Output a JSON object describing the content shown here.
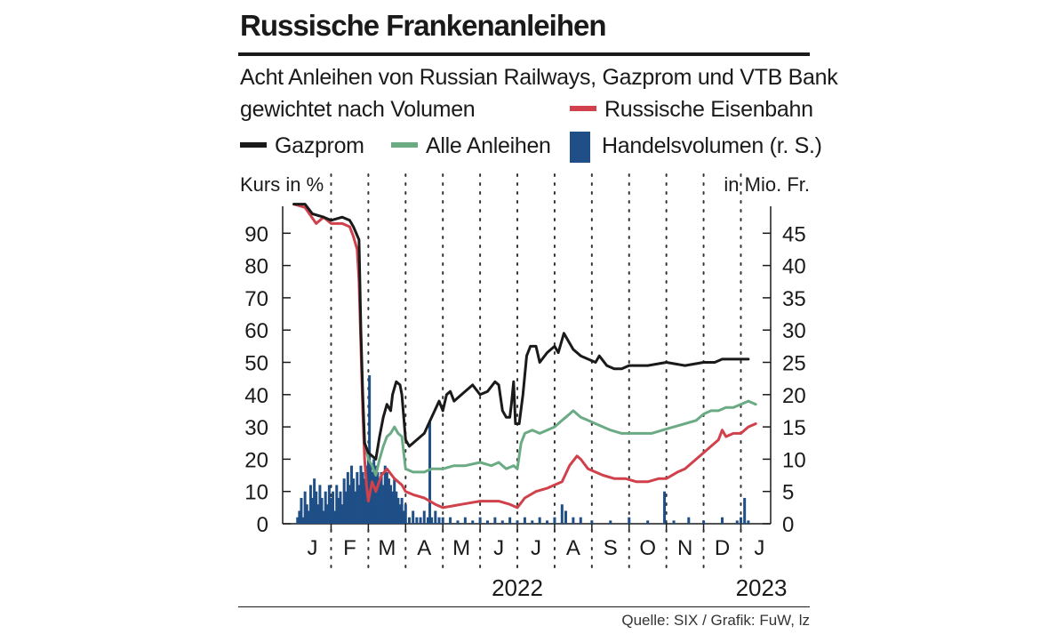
{
  "title": "Russische Frankenanleihen",
  "subtitle_line1": "Acht Anleihen von Russian Railways, Gazprom und VTB Bank",
  "subtitle_line2": "gewichtet nach Volumen",
  "legend": {
    "railways": "Russische Eisenbahn",
    "gazprom": "Gazprom",
    "all": "Alle Anleihen",
    "volume": "Handelsvolumen (r. S.)"
  },
  "colors": {
    "railways": "#d0414b",
    "gazprom": "#1a1a1a",
    "all": "#6aab84",
    "volume": "#1f4f86"
  },
  "left_axis_label": "Kurs in %",
  "right_axis_label": "in Mio. Fr.",
  "source": "Quelle: SIX / Grafik: FuW, lz",
  "chart_data": {
    "type": "line",
    "x_unit": "months since 1 Jan 2022",
    "xlim": [
      -0.3,
      12.8
    ],
    "ylim_left": [
      0,
      100
    ],
    "ylim_right": [
      0,
      50
    ],
    "left_ticks": [
      0,
      10,
      20,
      30,
      40,
      50,
      60,
      70,
      80,
      90
    ],
    "right_ticks": [
      0,
      5,
      10,
      15,
      20,
      25,
      30,
      35,
      40,
      45
    ],
    "month_labels": [
      {
        "label": "J",
        "t": 0.5
      },
      {
        "label": "F",
        "t": 1.5
      },
      {
        "label": "M",
        "t": 2.5
      },
      {
        "label": "A",
        "t": 3.5
      },
      {
        "label": "M",
        "t": 4.5
      },
      {
        "label": "J",
        "t": 5.5
      },
      {
        "label": "J",
        "t": 6.5
      },
      {
        "label": "A",
        "t": 7.5
      },
      {
        "label": "S",
        "t": 8.5
      },
      {
        "label": "O",
        "t": 9.5
      },
      {
        "label": "N",
        "t": 10.5
      },
      {
        "label": "D",
        "t": 11.5
      },
      {
        "label": "J",
        "t": 12.5
      }
    ],
    "month_dividers": [
      1,
      2,
      3,
      4,
      5,
      6,
      7,
      8,
      9,
      10,
      11,
      12
    ],
    "year_labels": [
      {
        "label": "2022",
        "t": 6
      },
      {
        "label": "2023",
        "t": 12.55
      }
    ],
    "series": [
      {
        "name": "Gazprom",
        "axis": "left",
        "points": [
          [
            0,
            99
          ],
          [
            0.3,
            99
          ],
          [
            0.5,
            96
          ],
          [
            0.8,
            95
          ],
          [
            1.0,
            94
          ],
          [
            1.3,
            95
          ],
          [
            1.5,
            94
          ],
          [
            1.6,
            92
          ],
          [
            1.75,
            88
          ],
          [
            1.8,
            60
          ],
          [
            1.85,
            40
          ],
          [
            1.9,
            25
          ],
          [
            2.0,
            22
          ],
          [
            2.1,
            21
          ],
          [
            2.2,
            20
          ],
          [
            2.3,
            27
          ],
          [
            2.4,
            33
          ],
          [
            2.5,
            37
          ],
          [
            2.6,
            35
          ],
          [
            2.65,
            40
          ],
          [
            2.75,
            44
          ],
          [
            2.85,
            43
          ],
          [
            2.9,
            40
          ],
          [
            3.0,
            26
          ],
          [
            3.1,
            24
          ],
          [
            3.3,
            26
          ],
          [
            3.5,
            28
          ],
          [
            3.7,
            33
          ],
          [
            3.9,
            38
          ],
          [
            4.0,
            35
          ],
          [
            4.1,
            40
          ],
          [
            4.2,
            41
          ],
          [
            4.3,
            38
          ],
          [
            4.5,
            40
          ],
          [
            4.8,
            43
          ],
          [
            5.0,
            40
          ],
          [
            5.2,
            41
          ],
          [
            5.4,
            44
          ],
          [
            5.5,
            43
          ],
          [
            5.6,
            35
          ],
          [
            5.7,
            33
          ],
          [
            5.8,
            33
          ],
          [
            5.85,
            38
          ],
          [
            5.9,
            44
          ],
          [
            5.95,
            31
          ],
          [
            6.05,
            31
          ],
          [
            6.15,
            40
          ],
          [
            6.25,
            52
          ],
          [
            6.35,
            55
          ],
          [
            6.5,
            55
          ],
          [
            6.6,
            50
          ],
          [
            6.8,
            53
          ],
          [
            7.0,
            55
          ],
          [
            7.1,
            53
          ],
          [
            7.25,
            59
          ],
          [
            7.35,
            57
          ],
          [
            7.5,
            54
          ],
          [
            7.7,
            52
          ],
          [
            7.9,
            51
          ],
          [
            8.1,
            50
          ],
          [
            8.2,
            52
          ],
          [
            8.4,
            49
          ],
          [
            8.6,
            48
          ],
          [
            8.8,
            48
          ],
          [
            9.0,
            49
          ],
          [
            9.5,
            49
          ],
          [
            10.0,
            50
          ],
          [
            10.5,
            49
          ],
          [
            11.0,
            50
          ],
          [
            11.3,
            50
          ],
          [
            11.5,
            51
          ],
          [
            11.8,
            51
          ],
          [
            12.0,
            51
          ],
          [
            12.2,
            51
          ]
        ]
      },
      {
        "name": "Russische Eisenbahn",
        "axis": "left",
        "points": [
          [
            0,
            99
          ],
          [
            0.3,
            98
          ],
          [
            0.6,
            93
          ],
          [
            0.8,
            95
          ],
          [
            1.0,
            93
          ],
          [
            1.3,
            93
          ],
          [
            1.5,
            92
          ],
          [
            1.6,
            89
          ],
          [
            1.7,
            85
          ],
          [
            1.75,
            75
          ],
          [
            1.8,
            55
          ],
          [
            1.85,
            35
          ],
          [
            1.9,
            20
          ],
          [
            1.95,
            12
          ],
          [
            2.0,
            7
          ],
          [
            2.1,
            13
          ],
          [
            2.2,
            10
          ],
          [
            2.35,
            15
          ],
          [
            2.5,
            17
          ],
          [
            2.7,
            14
          ],
          [
            2.9,
            12
          ],
          [
            3.0,
            10
          ],
          [
            3.2,
            9
          ],
          [
            3.5,
            8
          ],
          [
            3.8,
            6
          ],
          [
            4.0,
            5
          ],
          [
            4.5,
            6
          ],
          [
            5.0,
            7
          ],
          [
            5.5,
            7
          ],
          [
            5.8,
            6
          ],
          [
            6.0,
            5
          ],
          [
            6.2,
            8
          ],
          [
            6.5,
            10
          ],
          [
            6.8,
            11
          ],
          [
            7.0,
            12
          ],
          [
            7.2,
            13
          ],
          [
            7.4,
            18
          ],
          [
            7.6,
            21
          ],
          [
            7.7,
            20
          ],
          [
            7.9,
            17
          ],
          [
            8.1,
            16
          ],
          [
            8.3,
            15
          ],
          [
            8.6,
            14
          ],
          [
            8.9,
            14
          ],
          [
            9.2,
            13
          ],
          [
            9.5,
            13
          ],
          [
            9.8,
            14
          ],
          [
            10.0,
            14
          ],
          [
            10.3,
            16
          ],
          [
            10.5,
            17
          ],
          [
            10.8,
            20
          ],
          [
            11.0,
            22
          ],
          [
            11.2,
            24
          ],
          [
            11.4,
            26
          ],
          [
            11.5,
            29
          ],
          [
            11.6,
            27
          ],
          [
            11.8,
            28
          ],
          [
            12.0,
            28
          ],
          [
            12.2,
            30
          ],
          [
            12.4,
            31
          ]
        ]
      },
      {
        "name": "Alle Anleihen",
        "axis": "left",
        "points": [
          [
            1.85,
            35
          ],
          [
            1.9,
            25
          ],
          [
            2.0,
            20
          ],
          [
            2.1,
            18
          ],
          [
            2.2,
            15
          ],
          [
            2.3,
            20
          ],
          [
            2.4,
            24
          ],
          [
            2.5,
            27
          ],
          [
            2.6,
            28
          ],
          [
            2.7,
            30
          ],
          [
            2.8,
            28
          ],
          [
            2.9,
            27
          ],
          [
            3.0,
            17
          ],
          [
            3.2,
            16
          ],
          [
            3.5,
            16
          ],
          [
            3.7,
            17
          ],
          [
            4.0,
            17
          ],
          [
            4.3,
            18
          ],
          [
            4.6,
            18
          ],
          [
            5.0,
            19
          ],
          [
            5.3,
            18
          ],
          [
            5.5,
            19
          ],
          [
            5.7,
            17
          ],
          [
            5.9,
            18
          ],
          [
            6.0,
            17
          ],
          [
            6.1,
            25
          ],
          [
            6.2,
            28
          ],
          [
            6.4,
            29
          ],
          [
            6.6,
            28
          ],
          [
            6.8,
            29
          ],
          [
            7.0,
            30
          ],
          [
            7.2,
            32
          ],
          [
            7.4,
            34
          ],
          [
            7.5,
            35
          ],
          [
            7.7,
            33
          ],
          [
            7.9,
            32
          ],
          [
            8.1,
            31
          ],
          [
            8.3,
            30
          ],
          [
            8.5,
            29
          ],
          [
            8.8,
            28
          ],
          [
            9.0,
            28
          ],
          [
            9.3,
            28
          ],
          [
            9.6,
            28
          ],
          [
            9.9,
            29
          ],
          [
            10.2,
            30
          ],
          [
            10.5,
            31
          ],
          [
            10.8,
            32
          ],
          [
            11.0,
            34
          ],
          [
            11.2,
            35
          ],
          [
            11.4,
            35
          ],
          [
            11.6,
            36
          ],
          [
            11.8,
            36
          ],
          [
            12.0,
            37
          ],
          [
            12.2,
            38
          ],
          [
            12.4,
            37
          ]
        ]
      },
      {
        "name": "Handelsvolumen (r. S.)",
        "axis": "right",
        "type": "bar",
        "points": [
          [
            0.1,
            1
          ],
          [
            0.15,
            2
          ],
          [
            0.2,
            4
          ],
          [
            0.25,
            1
          ],
          [
            0.3,
            5
          ],
          [
            0.35,
            3
          ],
          [
            0.4,
            2
          ],
          [
            0.45,
            6
          ],
          [
            0.5,
            4
          ],
          [
            0.55,
            7
          ],
          [
            0.6,
            5
          ],
          [
            0.65,
            3
          ],
          [
            0.7,
            6
          ],
          [
            0.75,
            4
          ],
          [
            0.8,
            2
          ],
          [
            0.85,
            5
          ],
          [
            0.9,
            3
          ],
          [
            0.95,
            6
          ],
          [
            1.0,
            4
          ],
          [
            1.05,
            5
          ],
          [
            1.1,
            2
          ],
          [
            1.15,
            6
          ],
          [
            1.2,
            4
          ],
          [
            1.25,
            5
          ],
          [
            1.3,
            3
          ],
          [
            1.35,
            7
          ],
          [
            1.4,
            5
          ],
          [
            1.45,
            8
          ],
          [
            1.5,
            6
          ],
          [
            1.55,
            9
          ],
          [
            1.6,
            7
          ],
          [
            1.65,
            5
          ],
          [
            1.7,
            8
          ],
          [
            1.75,
            6
          ],
          [
            1.8,
            9
          ],
          [
            1.85,
            8
          ],
          [
            1.9,
            7
          ],
          [
            1.95,
            9
          ],
          [
            2.0,
            10
          ],
          [
            2.03,
            23
          ],
          [
            2.06,
            9
          ],
          [
            2.1,
            8
          ],
          [
            2.15,
            10
          ],
          [
            2.2,
            9
          ],
          [
            2.25,
            8
          ],
          [
            2.3,
            7
          ],
          [
            2.35,
            8
          ],
          [
            2.4,
            6
          ],
          [
            2.45,
            9
          ],
          [
            2.5,
            8
          ],
          [
            2.55,
            7
          ],
          [
            2.6,
            6
          ],
          [
            2.65,
            5
          ],
          [
            2.7,
            7
          ],
          [
            2.75,
            5
          ],
          [
            2.8,
            4
          ],
          [
            2.85,
            3
          ],
          [
            2.9,
            4
          ],
          [
            2.95,
            2
          ],
          [
            3.0,
            3
          ],
          [
            3.1,
            1
          ],
          [
            3.2,
            2
          ],
          [
            3.3,
            1
          ],
          [
            3.4,
            1
          ],
          [
            3.5,
            2
          ],
          [
            3.6,
            1
          ],
          [
            3.65,
            16
          ],
          [
            3.7,
            1
          ],
          [
            3.8,
            2
          ],
          [
            3.9,
            1
          ],
          [
            4.0,
            1
          ],
          [
            4.2,
            1
          ],
          [
            4.4,
            0.5
          ],
          [
            4.6,
            1
          ],
          [
            4.8,
            0.5
          ],
          [
            5.0,
            1
          ],
          [
            5.2,
            0.5
          ],
          [
            5.4,
            1
          ],
          [
            5.6,
            0.5
          ],
          [
            5.8,
            1
          ],
          [
            6.0,
            0.5
          ],
          [
            6.2,
            1
          ],
          [
            6.4,
            0.5
          ],
          [
            6.6,
            1
          ],
          [
            6.8,
            0.5
          ],
          [
            7.0,
            1
          ],
          [
            7.2,
            3
          ],
          [
            7.3,
            2
          ],
          [
            7.5,
            1
          ],
          [
            7.7,
            1
          ],
          [
            8.0,
            0.5
          ],
          [
            8.5,
            0.5
          ],
          [
            9.0,
            1
          ],
          [
            9.5,
            0.5
          ],
          [
            9.95,
            5
          ],
          [
            10.2,
            0.5
          ],
          [
            10.6,
            1
          ],
          [
            11.0,
            0.5
          ],
          [
            11.5,
            1
          ],
          [
            11.9,
            0.5
          ],
          [
            12.0,
            1
          ],
          [
            12.1,
            4
          ],
          [
            12.2,
            0.5
          ]
        ]
      }
    ]
  }
}
